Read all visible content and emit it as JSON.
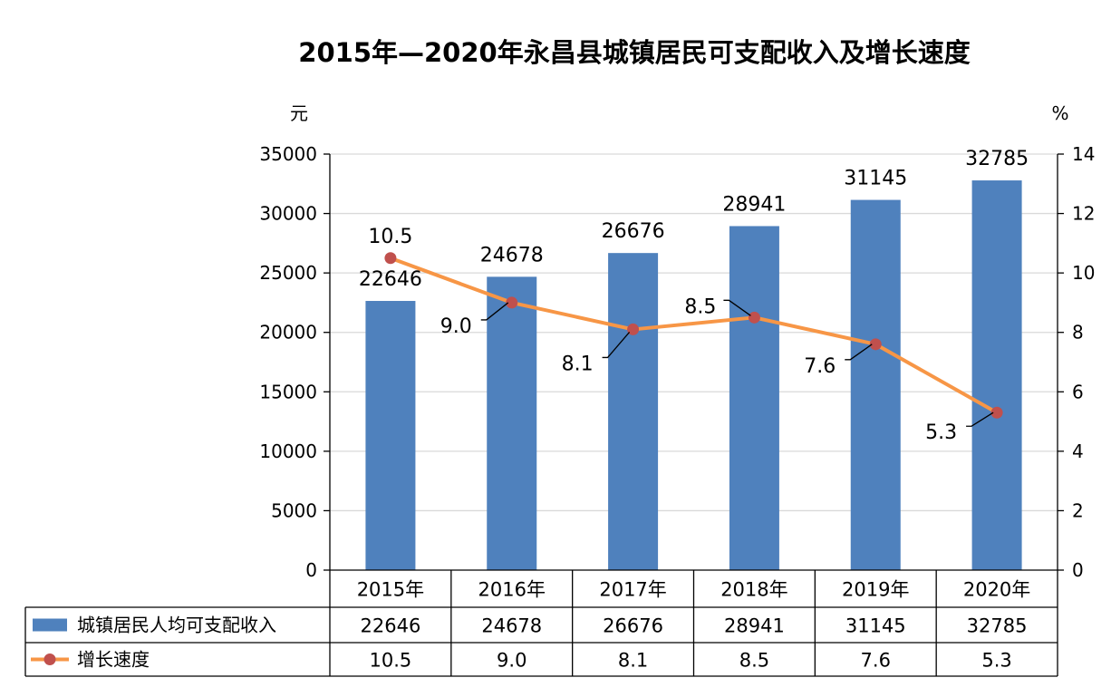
{
  "chart_data": {
    "type": "bar",
    "title": "2015年—2020年永昌县城镇居民可支配收入及增长速度",
    "categories": [
      "2015年",
      "2016年",
      "2017年",
      "2018年",
      "2019年",
      "2020年"
    ],
    "y_left": {
      "unit": "元",
      "range": [
        0,
        35000
      ],
      "ticks": [
        "0",
        "5000",
        "10000",
        "15000",
        "20000",
        "25000",
        "30000",
        "35000"
      ]
    },
    "y_right": {
      "unit": "%",
      "range": [
        0,
        14
      ],
      "ticks": [
        "0",
        "2",
        "4",
        "6",
        "8",
        "10",
        "12",
        "14"
      ]
    },
    "grid": true,
    "legend_placement": "bottom data table",
    "series": [
      {
        "name": "城镇居民人均可支配收入",
        "kind": "bar",
        "axis": "left",
        "color": "#4F81BD",
        "values": [
          22646,
          24678,
          26676,
          28941,
          31145,
          32785
        ],
        "labels": [
          "22646",
          "24678",
          "26676",
          "28941",
          "31145",
          "32785"
        ]
      },
      {
        "name": "增长速度",
        "kind": "line",
        "axis": "right",
        "color": "#F79646",
        "marker_color": "#C0504D",
        "values": [
          10.5,
          9.0,
          8.1,
          8.5,
          7.6,
          5.3
        ],
        "labels": [
          "10.5",
          "9.0",
          "8.1",
          "8.5",
          "7.6",
          "5.3"
        ]
      }
    ]
  }
}
